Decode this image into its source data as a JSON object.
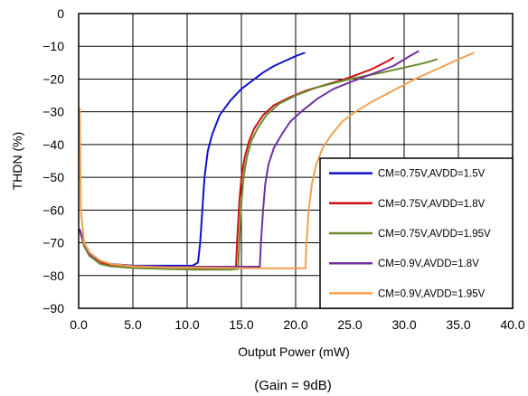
{
  "chart_data": {
    "type": "line",
    "title": "",
    "xlabel": "Output Power (mW)",
    "ylabel": "THDN (%)",
    "caption": "(Gain = 9dB)",
    "xlim": [
      0,
      40
    ],
    "ylim": [
      -90,
      0
    ],
    "x_ticks": [
      0,
      5,
      10,
      15,
      20,
      25,
      30,
      35,
      40
    ],
    "x_tick_labels": [
      "0.0",
      "5.0",
      "10.0",
      "15.0",
      "20.0",
      "25.0",
      "30.0",
      "35.0",
      "40.0"
    ],
    "y_ticks": [
      0,
      -10,
      -20,
      -30,
      -40,
      -50,
      -60,
      -70,
      -80,
      -90
    ],
    "y_tick_labels": [
      "0",
      "−10",
      "−20",
      "−30",
      "−40",
      "−50",
      "−60",
      "−70",
      "−80",
      "−90"
    ],
    "grid": true,
    "legend_position": "bottom-right",
    "series": [
      {
        "name": "CM=0.75V,AVDD=1.5V",
        "color": "#1010d0",
        "points": [
          [
            0.1,
            -66
          ],
          [
            0.5,
            -70
          ],
          [
            1,
            -73
          ],
          [
            2,
            -75.5
          ],
          [
            3,
            -76.5
          ],
          [
            5,
            -77
          ],
          [
            7,
            -77
          ],
          [
            9,
            -77
          ],
          [
            10.5,
            -77
          ],
          [
            11,
            -76
          ],
          [
            11.2,
            -70
          ],
          [
            11.4,
            -60
          ],
          [
            11.6,
            -50
          ],
          [
            11.9,
            -42
          ],
          [
            12.3,
            -37
          ],
          [
            13,
            -31
          ],
          [
            14,
            -26.5
          ],
          [
            15,
            -23
          ],
          [
            16,
            -20.5
          ],
          [
            17,
            -18
          ],
          [
            18,
            -16
          ],
          [
            19,
            -14.5
          ],
          [
            20,
            -13
          ],
          [
            20.8,
            -12
          ]
        ]
      },
      {
        "name": "CM=0.75V,AVDD=1.8V",
        "color": "#d01010",
        "points": [
          [
            0.1,
            -66
          ],
          [
            0.5,
            -71
          ],
          [
            1,
            -74
          ],
          [
            2,
            -76
          ],
          [
            3,
            -76.8
          ],
          [
            5,
            -77.3
          ],
          [
            8,
            -77.5
          ],
          [
            11,
            -77.8
          ],
          [
            14,
            -77.8
          ],
          [
            14.5,
            -77.5
          ],
          [
            14.6,
            -70
          ],
          [
            14.8,
            -58
          ],
          [
            15,
            -50
          ],
          [
            15.3,
            -44
          ],
          [
            15.7,
            -39
          ],
          [
            16.2,
            -35
          ],
          [
            17,
            -31
          ],
          [
            18,
            -28
          ],
          [
            19.5,
            -25.5
          ],
          [
            21,
            -23.5
          ],
          [
            23,
            -21.5
          ],
          [
            25,
            -19.5
          ],
          [
            27,
            -17
          ],
          [
            28.5,
            -14.5
          ],
          [
            29,
            -13.5
          ]
        ]
      },
      {
        "name": "CM=0.75V,AVDD=1.95V",
        "color": "#6a8a30",
        "points": [
          [
            0.1,
            -66
          ],
          [
            0.5,
            -71
          ],
          [
            1,
            -74
          ],
          [
            2,
            -76.5
          ],
          [
            3,
            -77.2
          ],
          [
            5,
            -77.7
          ],
          [
            8,
            -78
          ],
          [
            11,
            -78.2
          ],
          [
            14,
            -78.2
          ],
          [
            14.7,
            -78
          ],
          [
            14.8,
            -70
          ],
          [
            15,
            -58
          ],
          [
            15.2,
            -50
          ],
          [
            15.5,
            -44
          ],
          [
            15.9,
            -39
          ],
          [
            16.5,
            -35
          ],
          [
            17.3,
            -31
          ],
          [
            18.5,
            -27.5
          ],
          [
            20,
            -25
          ],
          [
            22,
            -22.5
          ],
          [
            25,
            -20
          ],
          [
            28,
            -18
          ],
          [
            30,
            -16.5
          ],
          [
            32,
            -15
          ],
          [
            33,
            -14
          ]
        ]
      },
      {
        "name": "CM=0.9V,AVDD=1.8V",
        "color": "#7030a0",
        "points": [
          [
            0.1,
            -66
          ],
          [
            0.5,
            -70
          ],
          [
            1,
            -73.5
          ],
          [
            2,
            -75.5
          ],
          [
            3,
            -76.5
          ],
          [
            5,
            -77
          ],
          [
            8,
            -77.3
          ],
          [
            12,
            -77.3
          ],
          [
            15,
            -77.3
          ],
          [
            16.7,
            -77.3
          ],
          [
            16.8,
            -70
          ],
          [
            17,
            -60
          ],
          [
            17.2,
            -52
          ],
          [
            17.5,
            -46
          ],
          [
            18,
            -41
          ],
          [
            18.7,
            -37
          ],
          [
            19.5,
            -33
          ],
          [
            20.5,
            -30
          ],
          [
            22,
            -26
          ],
          [
            23.5,
            -23
          ],
          [
            25,
            -21
          ],
          [
            27,
            -18.5
          ],
          [
            29,
            -16
          ],
          [
            30.5,
            -13
          ],
          [
            31.3,
            -11.5
          ]
        ]
      },
      {
        "name": "CM=0.9V,AVDD=1.95V",
        "color": "#f4a050",
        "points": [
          [
            0.1,
            -29
          ],
          [
            0.2,
            -60
          ],
          [
            0.5,
            -70
          ],
          [
            1,
            -73
          ],
          [
            2,
            -75.5
          ],
          [
            3,
            -76.5
          ],
          [
            5,
            -77.2
          ],
          [
            8,
            -77.5
          ],
          [
            12,
            -77.6
          ],
          [
            16,
            -77.8
          ],
          [
            20,
            -77.8
          ],
          [
            20.9,
            -77.8
          ],
          [
            21,
            -70
          ],
          [
            21.2,
            -60
          ],
          [
            21.5,
            -52
          ],
          [
            21.9,
            -46
          ],
          [
            22.5,
            -41
          ],
          [
            23.3,
            -37
          ],
          [
            24.3,
            -33
          ],
          [
            25.5,
            -30
          ],
          [
            27,
            -27
          ],
          [
            29,
            -23.5
          ],
          [
            31,
            -20
          ],
          [
            33,
            -17
          ],
          [
            35,
            -14
          ],
          [
            36.4,
            -12
          ]
        ]
      }
    ]
  }
}
